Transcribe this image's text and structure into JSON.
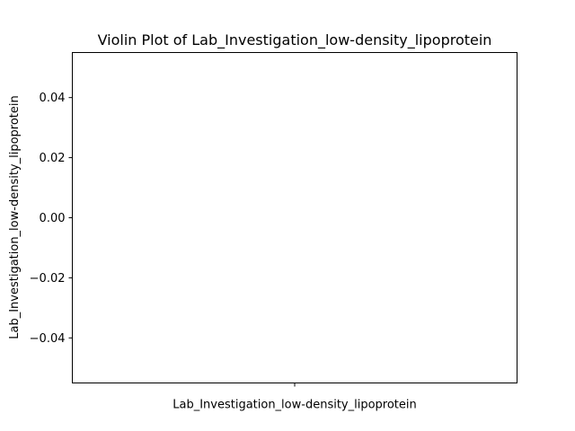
{
  "chart_data": {
    "type": "violin",
    "title": "Violin Plot of Lab_Investigation_low-density_lipoprotein",
    "xlabel": "",
    "ylabel": "Lab_Investigation_low-density_lipoprotein",
    "categories": [
      "Lab_Investigation_low-density_lipoprotein"
    ],
    "series": [
      {
        "values": []
      }
    ],
    "ylim": [
      -0.055,
      0.055
    ],
    "yticks": [
      {
        "value": 0.04,
        "label": "0.04"
      },
      {
        "value": 0.02,
        "label": "0.02"
      },
      {
        "value": 0.0,
        "label": "0.00"
      },
      {
        "value": -0.02,
        "label": "−0.02"
      },
      {
        "value": -0.04,
        "label": "−0.04"
      }
    ],
    "grid": false,
    "legend": "none"
  }
}
